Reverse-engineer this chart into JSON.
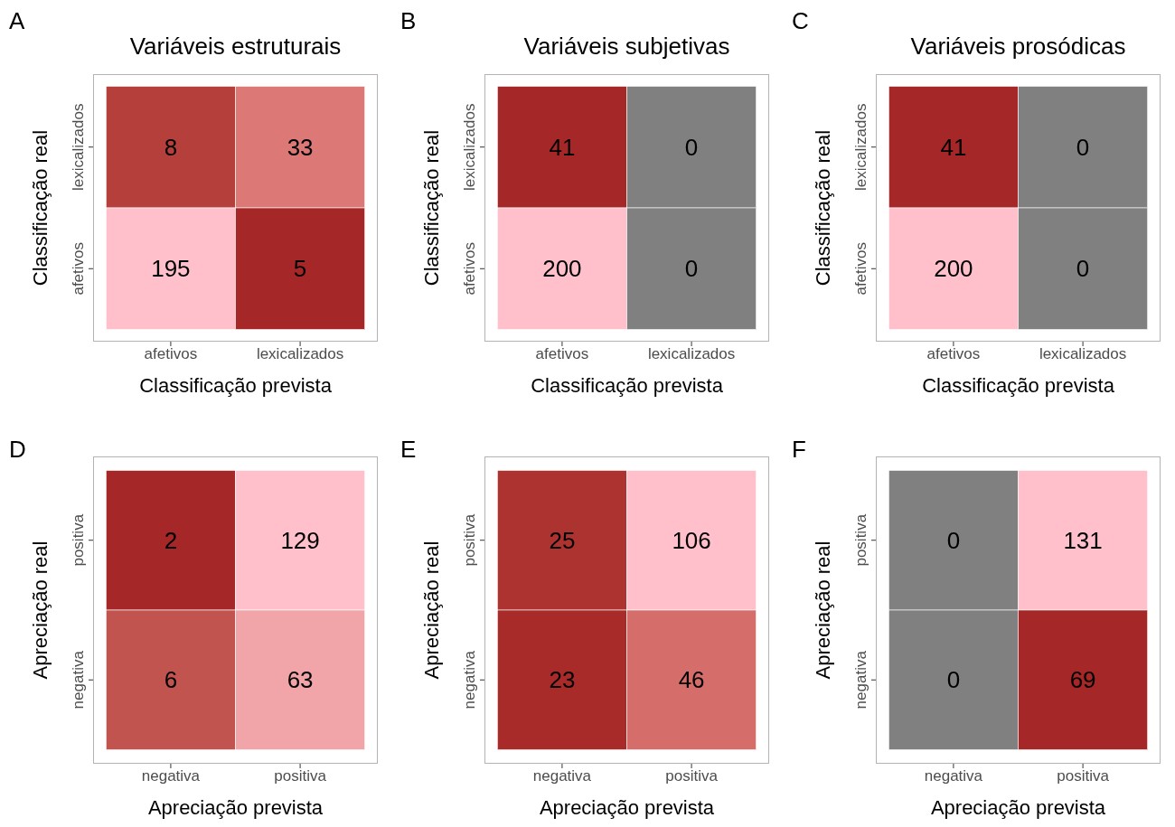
{
  "chart_data": [
    {
      "type": "heatmap",
      "title": "Variáveis estruturais",
      "xlabel": "Classificação prevista",
      "ylabel": "Classificação real",
      "annotations": [
        "A"
      ],
      "data_labels": true,
      "categories": [
        "afetivos",
        "lexicalizados"
      ],
      "y_categories": [
        "lexicalizados",
        "afetivos"
      ],
      "cells": [
        [
          8,
          33
        ],
        [
          195,
          5
        ]
      ],
      "colors": [
        [
          "#b5403b",
          "#dc7876"
        ],
        [
          "#ffc0cb",
          "#a52727"
        ]
      ]
    },
    {
      "type": "heatmap",
      "title": "Variáveis subjetivas",
      "xlabel": "Classificação prevista",
      "ylabel": "Classificação real",
      "annotations": [
        "B"
      ],
      "data_labels": true,
      "categories": [
        "afetivos",
        "lexicalizados"
      ],
      "y_categories": [
        "lexicalizados",
        "afetivos"
      ],
      "cells": [
        [
          41,
          0
        ],
        [
          200,
          0
        ]
      ],
      "colors": [
        [
          "#a52727",
          "#808080"
        ],
        [
          "#ffc0cb",
          "#808080"
        ]
      ]
    },
    {
      "type": "heatmap",
      "title": "Variáveis prosódicas",
      "xlabel": "Classificação prevista",
      "ylabel": "Classificação real",
      "annotations": [
        "C"
      ],
      "data_labels": true,
      "categories": [
        "afetivos",
        "lexicalizados"
      ],
      "y_categories": [
        "lexicalizados",
        "afetivos"
      ],
      "cells": [
        [
          41,
          0
        ],
        [
          200,
          0
        ]
      ],
      "colors": [
        [
          "#a52727",
          "#808080"
        ],
        [
          "#ffc0cb",
          "#808080"
        ]
      ]
    },
    {
      "type": "heatmap",
      "xlabel": "Apreciação prevista",
      "ylabel": "Apreciação real",
      "annotations": [
        "D"
      ],
      "data_labels": true,
      "categories": [
        "negativa",
        "positiva"
      ],
      "y_categories": [
        "positiva",
        "negativa"
      ],
      "cells": [
        [
          2,
          129
        ],
        [
          6,
          63
        ]
      ],
      "colors": [
        [
          "#a52727",
          "#ffc0cb"
        ],
        [
          "#c2544f",
          "#f2a5a8"
        ]
      ]
    },
    {
      "type": "heatmap",
      "xlabel": "Apreciação prevista",
      "ylabel": "Apreciação real",
      "annotations": [
        "E"
      ],
      "data_labels": true,
      "categories": [
        "negativa",
        "positiva"
      ],
      "y_categories": [
        "positiva",
        "negativa"
      ],
      "cells": [
        [
          25,
          106
        ],
        [
          23,
          46
        ]
      ],
      "colors": [
        [
          "#ad3331",
          "#ffc0cb"
        ],
        [
          "#a82b2a",
          "#d56d6b"
        ]
      ]
    },
    {
      "type": "heatmap",
      "xlabel": "Apreciação prevista",
      "ylabel": "Apreciação real",
      "annotations": [
        "F"
      ],
      "data_labels": true,
      "categories": [
        "negativa",
        "positiva"
      ],
      "y_categories": [
        "positiva",
        "negativa"
      ],
      "cells": [
        [
          0,
          131
        ],
        [
          0,
          69
        ]
      ],
      "colors": [
        [
          "#808080",
          "#ffc0cb"
        ],
        [
          "#808080",
          "#a52727"
        ]
      ]
    }
  ]
}
